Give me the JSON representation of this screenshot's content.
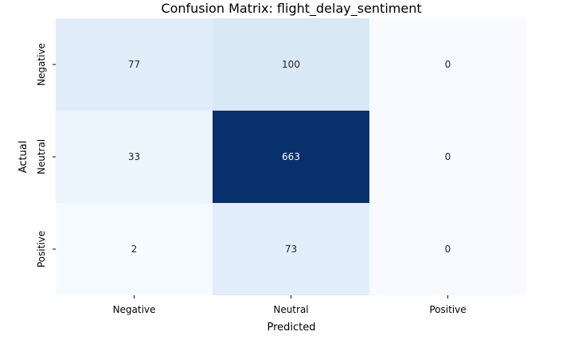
{
  "chart_data": {
    "type": "heatmap",
    "title": "Confusion Matrix: flight_delay_sentiment",
    "xlabel": "Predicted",
    "ylabel": "Actual",
    "x_categories": [
      "Negative",
      "Neutral",
      "Positive"
    ],
    "y_categories": [
      "Negative",
      "Neutral",
      "Positive"
    ],
    "values": [
      [
        77,
        100,
        0
      ],
      [
        33,
        663,
        0
      ],
      [
        2,
        73,
        0
      ]
    ],
    "colormap": "Blues",
    "colorbar": false,
    "annotations": true
  }
}
